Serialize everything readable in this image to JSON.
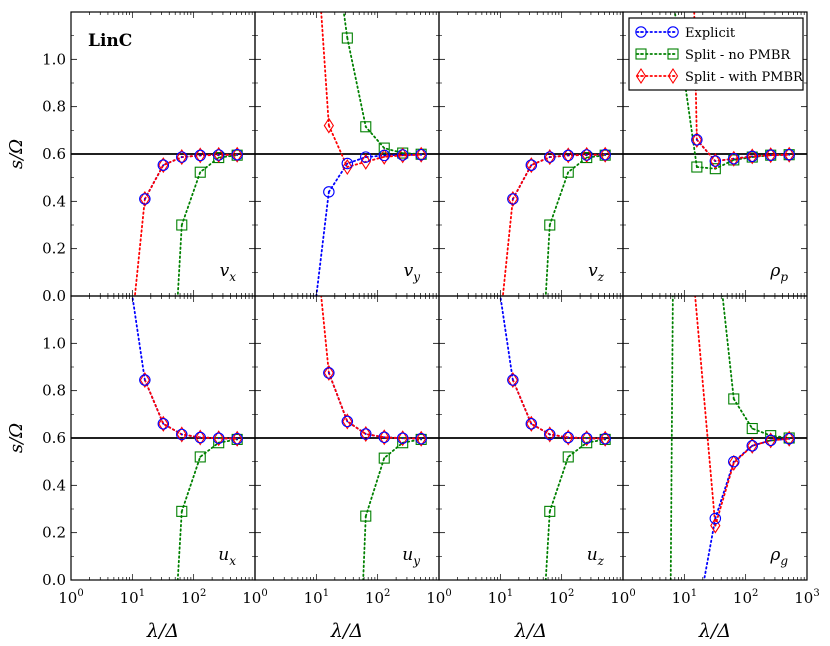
{
  "figure_label": "LinC",
  "chart_data": {
    "type": "line",
    "layout": "2x4 grid of panels, shared axes",
    "xscale": "log",
    "xlim": [
      1,
      1000
    ],
    "ylim": [
      0,
      1.2
    ],
    "xlabel": "λ/Δ",
    "ylabel": "s/Ω",
    "xtick_labels": [
      "10^0",
      "10^1",
      "10^2",
      "10^3"
    ],
    "ytick_labels": [
      "0.0",
      "0.2",
      "0.4",
      "0.6",
      "0.8",
      "1.0"
    ],
    "legend_loc": "top-right of fourth panel",
    "reference_line": {
      "y": 0.6,
      "color": "#000000"
    },
    "series_styles": [
      {
        "name": "Explicit",
        "color": "#0000ff",
        "marker": "circle"
      },
      {
        "name": "Split - no PMBR",
        "color": "#008000",
        "marker": "square"
      },
      {
        "name": "Split - with PMBR",
        "color": "#ff0000",
        "marker": "diamond"
      }
    ],
    "panels": [
      {
        "label": "v",
        "sub": "x",
        "series": [
          {
            "name": "Explicit",
            "x": [
              16,
              32,
              64,
              128,
              256,
              512
            ],
            "y": [
              0.41,
              0.553,
              0.587,
              0.594,
              0.596,
              0.597
            ]
          },
          {
            "name": "Split - no PMBR",
            "x": [
              64,
              128,
              256,
              512
            ],
            "y": [
              0.3,
              0.523,
              0.585,
              0.595
            ]
          },
          {
            "name": "Split - with PMBR",
            "x": [
              16,
              32,
              64,
              128,
              256,
              512
            ],
            "y": [
              0.41,
              0.553,
              0.587,
              0.594,
              0.596,
              0.597
            ]
          }
        ],
        "lines_to_axis": [
          {
            "color": "red",
            "from": [
              16,
              0.41
            ],
            "to": [
              11,
              0.0
            ]
          },
          {
            "color": "green",
            "from": [
              64,
              0.3
            ],
            "to": [
              55,
              0.0
            ]
          }
        ]
      },
      {
        "label": "v",
        "sub": "y",
        "series": [
          {
            "name": "Explicit",
            "x": [
              16,
              32,
              64,
              128,
              256,
              512
            ],
            "y": [
              0.44,
              0.56,
              0.587,
              0.594,
              0.596,
              0.597
            ]
          },
          {
            "name": "Split - no PMBR",
            "x": [
              32,
              64,
              128,
              256,
              512
            ],
            "y": [
              1.09,
              0.715,
              0.625,
              0.604,
              0.599
            ]
          },
          {
            "name": "Split - with PMBR",
            "x": [
              16,
              32,
              64,
              128,
              256,
              512
            ],
            "y": [
              0.72,
              0.545,
              0.567,
              0.588,
              0.594,
              0.597
            ]
          }
        ],
        "lines_to_axis": [
          {
            "color": "blue",
            "from": [
              16,
              0.44
            ],
            "to": [
              10,
              0.0
            ]
          },
          {
            "color": "red",
            "from": [
              16,
              0.72
            ],
            "to": [
              12,
              1.2
            ]
          },
          {
            "color": "green",
            "from": [
              32,
              1.09
            ],
            "to": [
              28,
              1.2
            ]
          }
        ]
      },
      {
        "label": "v",
        "sub": "z",
        "series": [
          {
            "name": "Explicit",
            "x": [
              16,
              32,
              64,
              128,
              256,
              512
            ],
            "y": [
              0.41,
              0.553,
              0.587,
              0.594,
              0.596,
              0.597
            ]
          },
          {
            "name": "Split - no PMBR",
            "x": [
              64,
              128,
              256,
              512
            ],
            "y": [
              0.3,
              0.523,
              0.585,
              0.595
            ]
          },
          {
            "name": "Split - with PMBR",
            "x": [
              16,
              32,
              64,
              128,
              256,
              512
            ],
            "y": [
              0.41,
              0.553,
              0.587,
              0.594,
              0.596,
              0.597
            ]
          }
        ],
        "lines_to_axis": [
          {
            "color": "red",
            "from": [
              16,
              0.41
            ],
            "to": [
              11,
              0.0
            ]
          },
          {
            "color": "green",
            "from": [
              64,
              0.3
            ],
            "to": [
              55,
              0.0
            ]
          }
        ]
      },
      {
        "label": "ρ",
        "sub": "p",
        "series": [
          {
            "name": "Explicit",
            "x": [
              16,
              32,
              64,
              128,
              256,
              512
            ],
            "y": [
              0.66,
              0.57,
              0.58,
              0.59,
              0.595,
              0.597
            ]
          },
          {
            "name": "Split - no PMBR",
            "x": [
              16,
              32,
              64,
              128,
              256,
              512
            ],
            "y": [
              0.545,
              0.538,
              0.575,
              0.587,
              0.595,
              0.597
            ]
          },
          {
            "name": "Split - with PMBR",
            "x": [
              16,
              32,
              64,
              128,
              256,
              512
            ],
            "y": [
              0.66,
              0.57,
              0.58,
              0.59,
              0.595,
              0.597
            ]
          }
        ],
        "lines_to_axis": [
          {
            "color": "red",
            "from": [
              16,
              0.66
            ],
            "to": [
              14.5,
              1.2
            ]
          },
          {
            "color": "green",
            "from": [
              16,
              0.545
            ],
            "to": [
              7,
              1.2
            ]
          }
        ]
      },
      {
        "label": "u",
        "sub": "x",
        "series": [
          {
            "name": "Explicit",
            "x": [
              16,
              32,
              64,
              128,
              256,
              512
            ],
            "y": [
              0.845,
              0.66,
              0.615,
              0.602,
              0.599,
              0.597
            ]
          },
          {
            "name": "Split - no PMBR",
            "x": [
              64,
              128,
              256,
              512
            ],
            "y": [
              0.29,
              0.52,
              0.58,
              0.594
            ]
          },
          {
            "name": "Split - with PMBR",
            "x": [
              16,
              32,
              64,
              128,
              256,
              512
            ],
            "y": [
              0.845,
              0.66,
              0.615,
              0.602,
              0.599,
              0.597
            ]
          }
        ],
        "lines_to_axis": [
          {
            "color": "blue",
            "from": [
              16,
              0.845
            ],
            "to": [
              10,
              1.2
            ]
          },
          {
            "color": "green",
            "from": [
              64,
              0.29
            ],
            "to": [
              55,
              0.0
            ]
          }
        ]
      },
      {
        "label": "u",
        "sub": "y",
        "series": [
          {
            "name": "Explicit",
            "x": [
              16,
              32,
              64,
              128,
              256,
              512
            ],
            "y": [
              0.875,
              0.67,
              0.617,
              0.603,
              0.599,
              0.597
            ]
          },
          {
            "name": "Split - no PMBR",
            "x": [
              64,
              128,
              256,
              512
            ],
            "y": [
              0.27,
              0.515,
              0.58,
              0.594
            ]
          },
          {
            "name": "Split - with PMBR",
            "x": [
              16,
              32,
              64,
              128,
              256,
              512
            ],
            "y": [
              0.875,
              0.67,
              0.617,
              0.603,
              0.599,
              0.597
            ]
          }
        ],
        "lines_to_axis": [
          {
            "color": "red",
            "from": [
              16,
              0.875
            ],
            "to": [
              12,
              1.2
            ]
          },
          {
            "color": "green",
            "from": [
              64,
              0.27
            ],
            "to": [
              58,
              0.0
            ]
          }
        ]
      },
      {
        "label": "u",
        "sub": "z",
        "series": [
          {
            "name": "Explicit",
            "x": [
              16,
              32,
              64,
              128,
              256,
              512
            ],
            "y": [
              0.845,
              0.66,
              0.615,
              0.602,
              0.599,
              0.597
            ]
          },
          {
            "name": "Split - no PMBR",
            "x": [
              64,
              128,
              256,
              512
            ],
            "y": [
              0.29,
              0.52,
              0.58,
              0.594
            ]
          },
          {
            "name": "Split - with PMBR",
            "x": [
              16,
              32,
              64,
              128,
              256,
              512
            ],
            "y": [
              0.845,
              0.66,
              0.615,
              0.602,
              0.599,
              0.597
            ]
          }
        ],
        "lines_to_axis": [
          {
            "color": "blue",
            "from": [
              16,
              0.845
            ],
            "to": [
              10,
              1.2
            ]
          },
          {
            "color": "green",
            "from": [
              64,
              0.29
            ],
            "to": [
              55,
              0.0
            ]
          }
        ]
      },
      {
        "label": "ρ",
        "sub": "g",
        "series": [
          {
            "name": "Explicit",
            "x": [
              32,
              64,
              128,
              256,
              512
            ],
            "y": [
              0.26,
              0.5,
              0.567,
              0.59,
              0.597
            ]
          },
          {
            "name": "Split - no PMBR",
            "x": [
              64,
              128,
              256,
              512
            ],
            "y": [
              0.765,
              0.64,
              0.61,
              0.6
            ]
          },
          {
            "name": "Split - with PMBR",
            "x": [
              32,
              64,
              128,
              256,
              512
            ],
            "y": [
              0.23,
              0.495,
              0.567,
              0.59,
              0.597
            ]
          }
        ],
        "lines_to_axis": [
          {
            "color": "blue",
            "from": [
              32,
              0.26
            ],
            "to": [
              21,
              0.0
            ]
          },
          {
            "color": "red",
            "from": [
              32,
              0.23
            ],
            "to": [
              15,
              1.2
            ]
          },
          {
            "color": "green",
            "from": [
              64,
              0.765
            ],
            "to": [
              42,
              1.2
            ]
          },
          {
            "color": "green",
            "from": [
              6,
              0.0
            ],
            "to": [
              6.5,
              1.2
            ]
          }
        ]
      }
    ]
  }
}
